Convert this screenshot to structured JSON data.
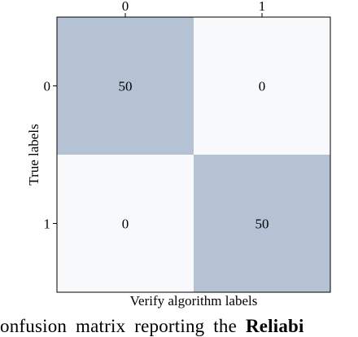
{
  "chart_data": {
    "type": "heatmap",
    "x_categories": [
      "0",
      "1"
    ],
    "y_categories": [
      "0",
      "1"
    ],
    "values": [
      [
        50,
        0
      ],
      [
        0,
        50
      ]
    ],
    "xlabel": "Verify algorithm labels",
    "ylabel": "True labels",
    "value_range": [
      0,
      50
    ],
    "colors": {
      "low": "#f7f9fb",
      "high": "#b4c2d4"
    },
    "grid": false,
    "colorbar": false
  },
  "caption": {
    "text": "onfusion matrix reporting the",
    "bold": "Reliabi"
  }
}
